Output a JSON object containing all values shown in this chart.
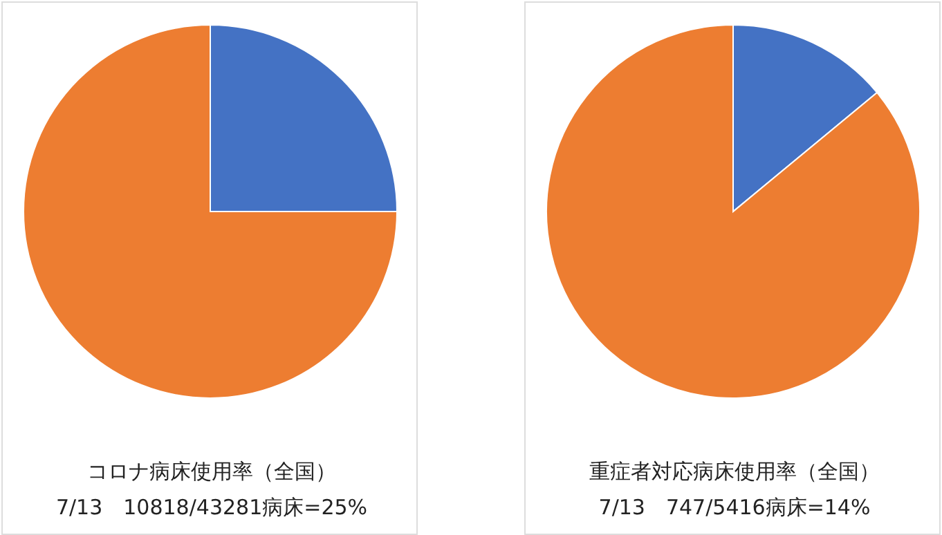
{
  "chart_data": [
    {
      "type": "pie",
      "title": "コロナ病床使用率（全国）",
      "subtitle": "7/13　10818/43281病床=25%",
      "categories": [
        null,
        null
      ],
      "values": [
        25,
        75
      ],
      "colors": [
        "#4472c4",
        "#ed7d31"
      ],
      "legend": false
    },
    {
      "type": "pie",
      "title": "重症者対応病床使用率（全国）",
      "subtitle": "7/13　747/5416病床=14%",
      "categories": [
        null,
        null
      ],
      "values": [
        14,
        86
      ],
      "colors": [
        "#4472c4",
        "#ed7d31"
      ],
      "legend": false
    }
  ]
}
